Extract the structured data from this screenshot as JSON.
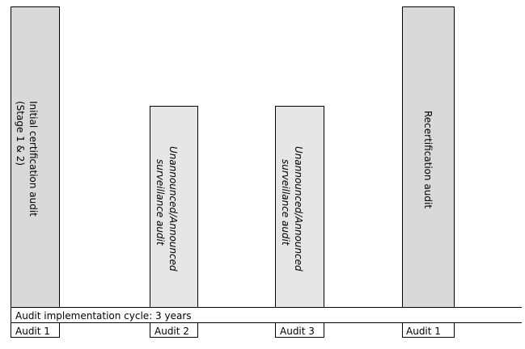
{
  "bars": [
    {
      "lines": [
        "Initial certification audit",
        "(Stage 1 & 2)"
      ]
    },
    {
      "lines": [
        "Unannounced/Announced",
        "surveillance audit"
      ]
    },
    {
      "lines": [
        "Unannounced/Announced",
        "surveillance audit"
      ]
    },
    {
      "lines": [
        "Recertification audit"
      ]
    }
  ],
  "cycle_label": "Audit implementation cycle: 3 years",
  "audit_labels": [
    "Audit 1",
    "Audit 2",
    "Audit 3",
    "Audit 1"
  ]
}
